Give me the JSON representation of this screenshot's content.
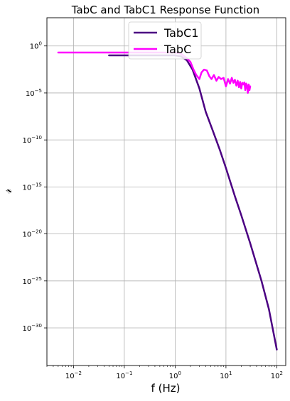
{
  "chart_data": {
    "type": "line",
    "title": "TabC and TabC1 Response Function",
    "xlabel": "f (Hz)",
    "ylabel": "𝓇",
    "x_scale": "log",
    "y_scale": "log",
    "xlim": [
      0.003,
      150
    ],
    "ylim": [
      1e-34,
      1000.0
    ],
    "grid": true,
    "legend_position": "top-center",
    "x_ticks": [
      {
        "value": 0.01,
        "base": "10",
        "exp": "−2"
      },
      {
        "value": 0.1,
        "base": "10",
        "exp": "−1"
      },
      {
        "value": 1,
        "base": "10",
        "exp": "0"
      },
      {
        "value": 10,
        "base": "10",
        "exp": "1"
      },
      {
        "value": 100,
        "base": "10",
        "exp": "2"
      }
    ],
    "y_ticks": [
      {
        "value": 1,
        "base": "10",
        "exp": "0"
      },
      {
        "value": 1e-05,
        "base": "10",
        "exp": "−5"
      },
      {
        "value": 1e-10,
        "base": "10",
        "exp": "−10"
      },
      {
        "value": 1e-15,
        "base": "10",
        "exp": "−15"
      },
      {
        "value": 1e-20,
        "base": "10",
        "exp": "−20"
      },
      {
        "value": 1e-25,
        "base": "10",
        "exp": "−25"
      },
      {
        "value": 1e-30,
        "base": "10",
        "exp": "−30"
      }
    ],
    "series": [
      {
        "name": "TabC1",
        "color": "#4b0082",
        "x": [
          0.05,
          0.1,
          0.2,
          0.4,
          0.7,
          1.0,
          1.3,
          1.7,
          2.2,
          3.0,
          4.0,
          5.5,
          7.5,
          10,
          15,
          20,
          30,
          50,
          70,
          100
        ],
        "y": [
          0.1,
          0.1,
          0.1,
          0.1,
          0.1,
          0.1,
          0.08,
          0.03,
          0.003,
          3e-05,
          1e-07,
          1e-09,
          1e-11,
          1e-13,
          1e-16,
          1e-18,
          1e-21,
          1e-25,
          1e-28,
          5e-33
        ]
      },
      {
        "name": "TabC",
        "color": "#ff00ff",
        "x": [
          0.005,
          0.01,
          0.05,
          0.1,
          0.3,
          0.6,
          1.0,
          1.3,
          1.7,
          2.0,
          2.3,
          2.6,
          3.0,
          3.3,
          3.7,
          4.2,
          4.7,
          5.2,
          5.8,
          6.5,
          7.2,
          8.0,
          9.0,
          10.0,
          11,
          12,
          13,
          14,
          15,
          16,
          17,
          18,
          19,
          20,
          21,
          22,
          23,
          24,
          25,
          26,
          27,
          28,
          29,
          30
        ],
        "y": [
          0.2,
          0.2,
          0.2,
          0.2,
          0.2,
          0.2,
          0.2,
          0.15,
          0.05,
          0.02,
          0.003,
          0.0008,
          0.0003,
          0.0015,
          0.003,
          0.0025,
          0.0006,
          0.0003,
          0.0008,
          0.0002,
          0.0005,
          0.0003,
          0.0004,
          5e-05,
          0.0003,
          0.0001,
          0.0004,
          0.00012,
          0.00025,
          6e-05,
          0.0002,
          4e-05,
          0.00015,
          3e-05,
          0.00012,
          8e-05,
          0.00013,
          2e-05,
          0.0001,
          6e-05,
          1e-05,
          8e-05,
          2e-05,
          5e-05
        ]
      }
    ]
  }
}
